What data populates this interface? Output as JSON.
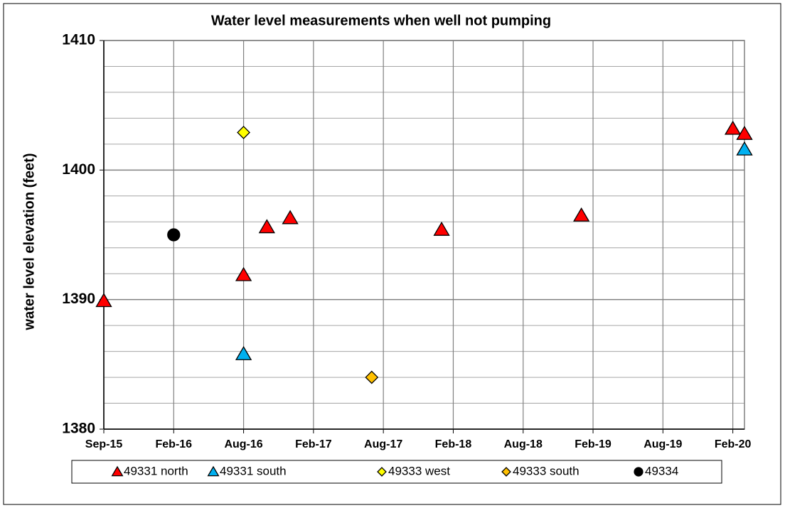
{
  "chart_data": {
    "type": "scatter",
    "title": "Water level measurements when well not pumping",
    "y_label": "water level elevation (feet)",
    "xlim": [
      "2015-09",
      "2020-03"
    ],
    "xticks": [
      {
        "value": "2015-09",
        "label": "Sep-15"
      },
      {
        "value": "2016-02",
        "label": "Feb-16"
      },
      {
        "value": "2016-08",
        "label": "Aug-16"
      },
      {
        "value": "2017-02",
        "label": "Feb-17"
      },
      {
        "value": "2017-08",
        "label": "Aug-17"
      },
      {
        "value": "2018-02",
        "label": "Feb-18"
      },
      {
        "value": "2018-08",
        "label": "Aug-18"
      },
      {
        "value": "2019-02",
        "label": "Feb-19"
      },
      {
        "value": "2019-08",
        "label": "Aug-19"
      },
      {
        "value": "2020-02",
        "label": "Feb-20"
      }
    ],
    "ylim": [
      1380,
      1410
    ],
    "yticks": [
      1380,
      1390,
      1400,
      1410
    ],
    "minor_yticks": [
      1382,
      1384,
      1386,
      1388,
      1392,
      1394,
      1396,
      1398,
      1402,
      1404,
      1406,
      1408
    ],
    "grid": true,
    "legend": "bottom",
    "series": [
      {
        "name": "49331 north",
        "color": "#ff0000",
        "marker": "triangle",
        "x": [
          "2015-09",
          "2016-08",
          "2016-10",
          "2016-12",
          "2018-01",
          "2019-01",
          "2020-02",
          "2020-03"
        ],
        "values": [
          1389.9,
          1391.9,
          1395.6,
          1396.3,
          1395.4,
          1396.5,
          1403.2,
          1402.8
        ]
      },
      {
        "name": "49331 south",
        "color": "#00b0f0",
        "marker": "triangle",
        "x": [
          "2016-08",
          "2020-03"
        ],
        "values": [
          1385.8,
          1401.6
        ]
      },
      {
        "name": "49333 west",
        "color": "#ffff00",
        "marker": "diamond",
        "x": [
          "2016-08"
        ],
        "values": [
          1402.9
        ]
      },
      {
        "name": "49333 south",
        "color": "#ffc000",
        "marker": "diamond",
        "x": [
          "2017-07"
        ],
        "values": [
          1384.0
        ]
      },
      {
        "name": "49334",
        "color": "#000000",
        "marker": "circle",
        "x": [
          "2016-02"
        ],
        "values": [
          1395.0
        ]
      }
    ]
  }
}
